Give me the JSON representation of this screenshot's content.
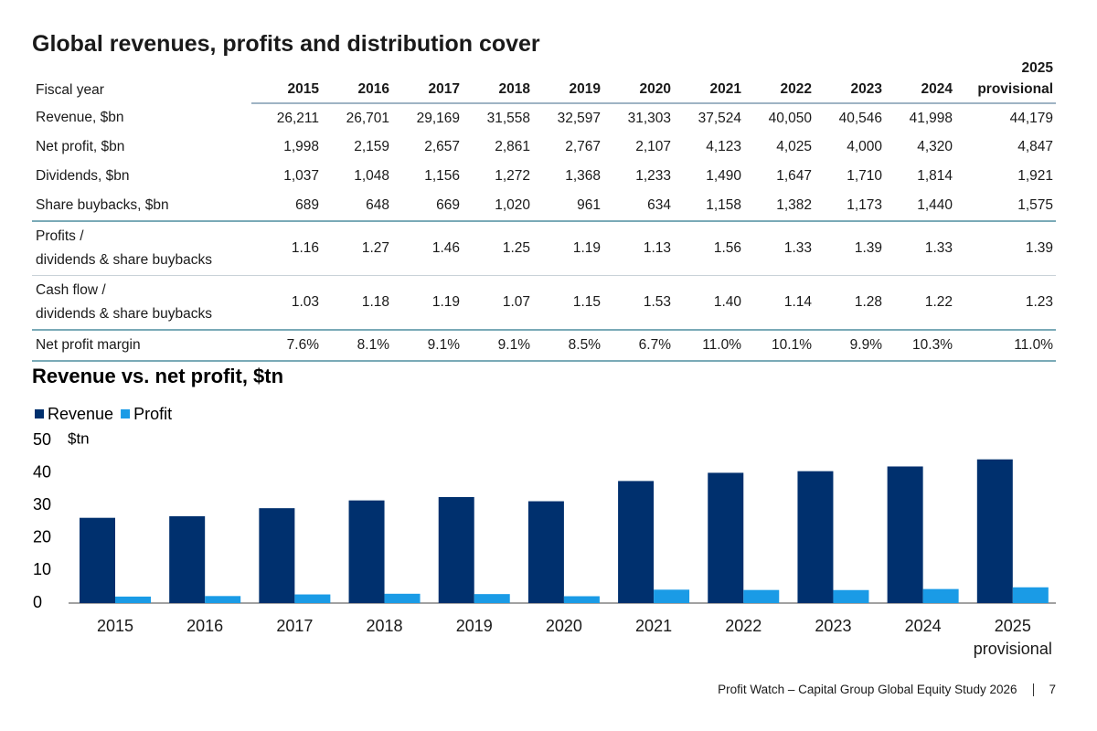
{
  "table": {
    "title": "Global revenues, profits and distribution cover",
    "header": [
      "Fiscal year",
      "2015",
      "2016",
      "2017",
      "2018",
      "2019",
      "2020",
      "2021",
      "2022",
      "2023",
      "2024",
      "2025\nprovisional"
    ],
    "rows": [
      [
        "Revenue, $bn",
        "26,211",
        "26,701",
        "29,169",
        "31,558",
        "32,597",
        "31,303",
        "37,524",
        "40,050",
        "40,546",
        "41,998",
        "44,179"
      ],
      [
        "Net profit, $bn",
        "1,998",
        "2,159",
        "2,657",
        "2,861",
        "2,767",
        "2,107",
        "4,123",
        "4,025",
        "4,000",
        "4,320",
        "4,847"
      ],
      [
        "Dividends, $bn",
        "1,037",
        "1,048",
        "1,156",
        "1,272",
        "1,368",
        "1,233",
        "1,490",
        "1,647",
        "1,710",
        "1,814",
        "1,921"
      ],
      [
        "Share buybacks, $bn",
        "689",
        "648",
        "669",
        "1,020",
        "961",
        "634",
        "1,158",
        "1,382",
        "1,173",
        "1,440",
        "1,575"
      ],
      [
        "Profits /\ndividends & share buybacks",
        "1.16",
        "1.27",
        "1.46",
        "1.25",
        "1.19",
        "1.13",
        "1.56",
        "1.33",
        "1.39",
        "1.33",
        "1.39"
      ],
      [
        "Cash flow /\ndividends & share buybacks",
        "1.03",
        "1.18",
        "1.19",
        "1.07",
        "1.15",
        "1.53",
        "1.40",
        "1.14",
        "1.28",
        "1.22",
        "1.23"
      ],
      [
        "Net profit margin",
        "7.6%",
        "8.1%",
        "9.1%",
        "9.1%",
        "8.5%",
        "6.7%",
        "11.0%",
        "10.1%",
        "9.9%",
        "10.3%",
        "11.0%"
      ]
    ]
  },
  "chart_data": {
    "type": "bar",
    "title": "Revenue vs. net profit, $tn",
    "y_label": "$tn",
    "categories": [
      "2015",
      "2016",
      "2017",
      "2018",
      "2019",
      "2020",
      "2021",
      "2022",
      "2023",
      "2024",
      "2025\nprovisional"
    ],
    "series": [
      {
        "name": "Revenue",
        "color": "#00306e",
        "values": [
          26.211,
          26.701,
          29.169,
          31.558,
          32.597,
          31.303,
          37.524,
          40.05,
          40.546,
          41.998,
          44.179
        ]
      },
      {
        "name": "Profit",
        "color": "#1a9be6",
        "values": [
          1.998,
          2.159,
          2.657,
          2.861,
          2.767,
          2.107,
          4.123,
          4.025,
          4.0,
          4.32,
          4.847
        ]
      }
    ],
    "ylim": [
      0,
      50
    ],
    "yticks": [
      0,
      10,
      20,
      30,
      40,
      50
    ],
    "grid": false
  },
  "footer": {
    "text": "Profit Watch – Capital Group Global Equity Study 2026",
    "page": "7"
  }
}
